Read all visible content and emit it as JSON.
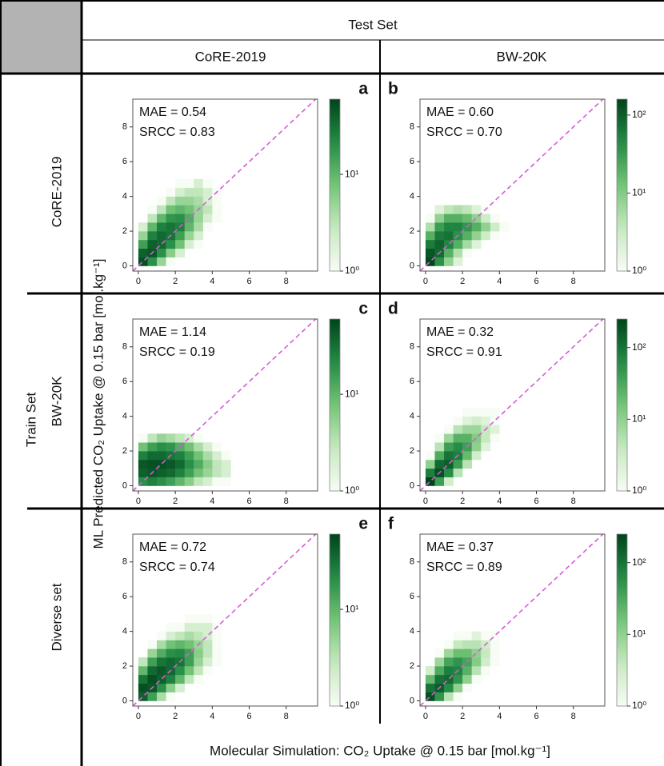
{
  "test_set": "Test Set",
  "columns": [
    "CoRE-2019",
    "BW-20K"
  ],
  "train_set": "Train Set",
  "rows": [
    "CoRE-2019",
    "BW-20K",
    "Diverse set"
  ],
  "x_label": "Molecular Simulation: CO₂ Uptake @ 0.15 bar [mol.kg⁻¹]",
  "y_label": "ML Predicted CO₂ Uptake @ 0.15 bar [mol.kg⁻¹]",
  "chart_data": [
    {
      "type": "hist2d",
      "panel": "a",
      "annotations": [
        "MAE = 0.54",
        "SRCC = 0.83"
      ],
      "colormap": "Greens",
      "log_color": true,
      "diagonal_color": "#d65cd6",
      "xlim": [
        -0.3,
        9.7
      ],
      "ylim": [
        -0.3,
        9.6
      ],
      "xticks": [
        0,
        2,
        4,
        6,
        8
      ],
      "yticks": [
        0,
        2,
        4,
        6,
        8
      ],
      "xbins": [
        0,
        0.5,
        1,
        1.5,
        2,
        2.5,
        3,
        3.5,
        4,
        4.5,
        5
      ],
      "ybins": [
        0,
        0.5,
        1,
        1.5,
        2,
        2.5,
        3,
        3.5,
        4,
        4.5,
        5
      ],
      "counts": [
        [
          50,
          20,
          5,
          1,
          0,
          0,
          0,
          0,
          0,
          0
        ],
        [
          40,
          45,
          20,
          6,
          2,
          0,
          0,
          0,
          0,
          0
        ],
        [
          15,
          40,
          35,
          20,
          8,
          2,
          1,
          0,
          0,
          0
        ],
        [
          5,
          25,
          35,
          30,
          15,
          5,
          2,
          0,
          0,
          0
        ],
        [
          2,
          10,
          25,
          30,
          25,
          10,
          4,
          1,
          0,
          0
        ],
        [
          0,
          3,
          10,
          18,
          20,
          12,
          5,
          2,
          1,
          0
        ],
        [
          0,
          1,
          3,
          8,
          10,
          8,
          5,
          3,
          1,
          0
        ],
        [
          0,
          0,
          1,
          3,
          5,
          5,
          4,
          2,
          1,
          0
        ],
        [
          0,
          0,
          0,
          1,
          2,
          3,
          3,
          2,
          1,
          0
        ],
        [
          0,
          0,
          0,
          0,
          1,
          1,
          2,
          1,
          0,
          0
        ]
      ],
      "clim": [
        1,
        60
      ],
      "cticks": [
        {
          "value": 1,
          "label": "10⁰"
        },
        {
          "value": 10,
          "label": "10¹"
        }
      ]
    },
    {
      "type": "hist2d",
      "panel": "b",
      "annotations": [
        "MAE = 0.60",
        "SRCC = 0.70"
      ],
      "colormap": "Greens",
      "log_color": true,
      "diagonal_color": "#d65cd6",
      "xlim": [
        -0.3,
        9.7
      ],
      "ylim": [
        -0.3,
        9.6
      ],
      "xticks": [
        0,
        2,
        4,
        6,
        8
      ],
      "yticks": [
        0,
        2,
        4,
        6,
        8
      ],
      "xbins": [
        0,
        0.5,
        1,
        1.5,
        2,
        2.5,
        3,
        3.5,
        4,
        4.5,
        5
      ],
      "ybins": [
        0,
        0.5,
        1,
        1.5,
        2,
        2.5,
        3,
        3.5,
        4,
        4.5,
        5
      ],
      "counts": [
        [
          150,
          40,
          8,
          2,
          0,
          0,
          0,
          0,
          0,
          0
        ],
        [
          120,
          80,
          20,
          5,
          1,
          0,
          0,
          0,
          0,
          0
        ],
        [
          60,
          90,
          50,
          20,
          6,
          2,
          0,
          0,
          0,
          0
        ],
        [
          20,
          60,
          70,
          40,
          20,
          8,
          3,
          1,
          0,
          0
        ],
        [
          5,
          30,
          50,
          50,
          35,
          20,
          8,
          3,
          1,
          0
        ],
        [
          1,
          8,
          20,
          20,
          15,
          8,
          3,
          1,
          0,
          0
        ],
        [
          0,
          2,
          4,
          5,
          4,
          2,
          1,
          0,
          0,
          0
        ],
        [
          0,
          0,
          0,
          0,
          0,
          0,
          0,
          0,
          0,
          0
        ],
        [
          0,
          0,
          0,
          0,
          0,
          0,
          0,
          0,
          0,
          0
        ],
        [
          0,
          0,
          0,
          0,
          0,
          0,
          0,
          0,
          0,
          0
        ]
      ],
      "clim": [
        1,
        160
      ],
      "cticks": [
        {
          "value": 1,
          "label": "10⁰"
        },
        {
          "value": 10,
          "label": "10¹"
        },
        {
          "value": 100,
          "label": "10²"
        }
      ]
    },
    {
      "type": "hist2d",
      "panel": "c",
      "annotations": [
        "MAE = 1.14",
        "SRCC = 0.19"
      ],
      "colormap": "Greens",
      "log_color": true,
      "diagonal_color": "#d65cd6",
      "xlim": [
        -0.3,
        9.7
      ],
      "ylim": [
        -0.3,
        9.6
      ],
      "xticks": [
        0,
        2,
        4,
        6,
        8
      ],
      "yticks": [
        0,
        2,
        4,
        6,
        8
      ],
      "xbins": [
        0,
        0.5,
        1,
        1.5,
        2,
        2.5,
        3,
        3.5,
        4,
        4.5,
        5
      ],
      "ybins": [
        0,
        0.5,
        1,
        1.5,
        2,
        2.5,
        3,
        3.5,
        4,
        4.5,
        5
      ],
      "counts": [
        [
          20,
          25,
          20,
          15,
          10,
          6,
          3,
          2,
          1,
          1
        ],
        [
          40,
          45,
          40,
          35,
          25,
          15,
          8,
          5,
          3,
          2
        ],
        [
          45,
          50,
          50,
          45,
          35,
          20,
          12,
          6,
          3,
          2
        ],
        [
          25,
          35,
          35,
          30,
          25,
          15,
          8,
          4,
          2,
          1
        ],
        [
          8,
          15,
          20,
          18,
          12,
          8,
          4,
          2,
          1,
          0
        ],
        [
          1,
          3,
          5,
          4,
          3,
          2,
          1,
          0,
          0,
          0
        ],
        [
          0,
          0,
          0,
          0,
          0,
          0,
          0,
          0,
          0,
          0
        ],
        [
          0,
          0,
          0,
          0,
          0,
          0,
          0,
          0,
          0,
          0
        ],
        [
          0,
          0,
          0,
          0,
          0,
          0,
          0,
          0,
          0,
          0
        ],
        [
          0,
          0,
          0,
          0,
          0,
          0,
          0,
          0,
          0,
          0
        ]
      ],
      "clim": [
        1,
        60
      ],
      "cticks": [
        {
          "value": 1,
          "label": "10⁰"
        },
        {
          "value": 10,
          "label": "10¹"
        }
      ]
    },
    {
      "type": "hist2d",
      "panel": "d",
      "annotations": [
        "MAE = 0.32",
        "SRCC = 0.91"
      ],
      "colormap": "Greens",
      "log_color": true,
      "diagonal_color": "#d65cd6",
      "xlim": [
        -0.3,
        9.7
      ],
      "ylim": [
        -0.3,
        9.6
      ],
      "xticks": [
        0,
        2,
        4,
        6,
        8
      ],
      "yticks": [
        0,
        2,
        4,
        6,
        8
      ],
      "xbins": [
        0,
        0.5,
        1,
        1.5,
        2,
        2.5,
        3,
        3.5,
        4,
        4.5,
        5
      ],
      "ybins": [
        0,
        0.5,
        1,
        1.5,
        2,
        2.5,
        3,
        3.5,
        4,
        4.5,
        5
      ],
      "counts": [
        [
          250,
          40,
          3,
          0,
          0,
          0,
          0,
          0,
          0,
          0
        ],
        [
          80,
          200,
          60,
          5,
          0,
          0,
          0,
          0,
          0,
          0
        ],
        [
          10,
          120,
          150,
          40,
          5,
          0,
          0,
          0,
          0,
          0
        ],
        [
          1,
          30,
          100,
          80,
          20,
          3,
          0,
          0,
          0,
          0
        ],
        [
          0,
          5,
          40,
          60,
          40,
          10,
          2,
          0,
          0,
          0
        ],
        [
          0,
          1,
          8,
          25,
          25,
          12,
          4,
          1,
          0,
          0
        ],
        [
          0,
          0,
          1,
          5,
          8,
          8,
          4,
          2,
          0,
          0
        ],
        [
          0,
          0,
          0,
          1,
          2,
          3,
          2,
          1,
          0,
          0
        ],
        [
          0,
          0,
          0,
          0,
          1,
          1,
          1,
          1,
          0,
          0
        ],
        [
          0,
          0,
          0,
          0,
          0,
          0,
          0,
          0,
          0,
          0
        ]
      ],
      "clim": [
        1,
        250
      ],
      "cticks": [
        {
          "value": 1,
          "label": "10⁰"
        },
        {
          "value": 10,
          "label": "10¹"
        },
        {
          "value": 100,
          "label": "10²"
        }
      ]
    },
    {
      "type": "hist2d",
      "panel": "e",
      "annotations": [
        "MAE = 0.72",
        "SRCC = 0.74"
      ],
      "colormap": "Greens",
      "log_color": true,
      "diagonal_color": "#d65cd6",
      "xlim": [
        -0.3,
        9.7
      ],
      "ylim": [
        -0.3,
        9.6
      ],
      "xticks": [
        0,
        2,
        4,
        6,
        8
      ],
      "yticks": [
        0,
        2,
        4,
        6,
        8
      ],
      "xbins": [
        0,
        0.5,
        1,
        1.5,
        2,
        2.5,
        3,
        3.5,
        4,
        4.5,
        5
      ],
      "ybins": [
        0,
        0.5,
        1,
        1.5,
        2,
        2.5,
        3,
        3.5,
        4,
        4.5,
        5
      ],
      "counts": [
        [
          40,
          15,
          4,
          1,
          0,
          0,
          0,
          0,
          0,
          0
        ],
        [
          50,
          45,
          20,
          6,
          2,
          0,
          0,
          0,
          0,
          0
        ],
        [
          30,
          50,
          40,
          25,
          10,
          3,
          1,
          0,
          0,
          0
        ],
        [
          10,
          35,
          45,
          35,
          20,
          8,
          3,
          1,
          0,
          0
        ],
        [
          3,
          15,
          30,
          35,
          30,
          15,
          5,
          2,
          1,
          0
        ],
        [
          0,
          5,
          12,
          20,
          22,
          15,
          6,
          3,
          1,
          0
        ],
        [
          0,
          1,
          4,
          8,
          10,
          8,
          5,
          3,
          1,
          0
        ],
        [
          0,
          0,
          1,
          2,
          3,
          4,
          3,
          2,
          1,
          0
        ],
        [
          0,
          0,
          0,
          1,
          1,
          2,
          2,
          2,
          1,
          0
        ],
        [
          0,
          0,
          0,
          0,
          0,
          1,
          1,
          1,
          0,
          0
        ]
      ],
      "clim": [
        1,
        60
      ],
      "cticks": [
        {
          "value": 1,
          "label": "10⁰"
        },
        {
          "value": 10,
          "label": "10¹"
        }
      ]
    },
    {
      "type": "hist2d",
      "panel": "f",
      "annotations": [
        "MAE = 0.37",
        "SRCC = 0.89"
      ],
      "colormap": "Greens",
      "log_color": true,
      "diagonal_color": "#d65cd6",
      "xlim": [
        -0.3,
        9.7
      ],
      "ylim": [
        -0.3,
        9.6
      ],
      "xticks": [
        0,
        2,
        4,
        6,
        8
      ],
      "yticks": [
        0,
        2,
        4,
        6,
        8
      ],
      "xbins": [
        0,
        0.5,
        1,
        1.5,
        2,
        2.5,
        3,
        3.5,
        4,
        4.5,
        5
      ],
      "ybins": [
        0,
        0.5,
        1,
        1.5,
        2,
        2.5,
        3,
        3.5,
        4,
        4.5,
        5
      ],
      "counts": [
        [
          200,
          50,
          5,
          1,
          0,
          0,
          0,
          0,
          0,
          0
        ],
        [
          100,
          150,
          60,
          10,
          1,
          0,
          0,
          0,
          0,
          0
        ],
        [
          20,
          100,
          120,
          50,
          10,
          1,
          0,
          0,
          0,
          0
        ],
        [
          3,
          30,
          80,
          70,
          25,
          5,
          1,
          0,
          0,
          0
        ],
        [
          0,
          8,
          35,
          50,
          35,
          12,
          3,
          1,
          0,
          0
        ],
        [
          0,
          1,
          8,
          18,
          18,
          10,
          4,
          1,
          0,
          0
        ],
        [
          0,
          0,
          1,
          4,
          5,
          5,
          3,
          1,
          0,
          0
        ],
        [
          0,
          0,
          0,
          1,
          1,
          2,
          1,
          1,
          0,
          0
        ],
        [
          0,
          0,
          0,
          0,
          0,
          0,
          0,
          0,
          0,
          0
        ],
        [
          0,
          0,
          0,
          0,
          0,
          0,
          0,
          0,
          0,
          0
        ]
      ],
      "clim": [
        1,
        250
      ],
      "cticks": [
        {
          "value": 1,
          "label": "10⁰"
        },
        {
          "value": 10,
          "label": "10¹"
        },
        {
          "value": 100,
          "label": "10²"
        }
      ]
    }
  ]
}
